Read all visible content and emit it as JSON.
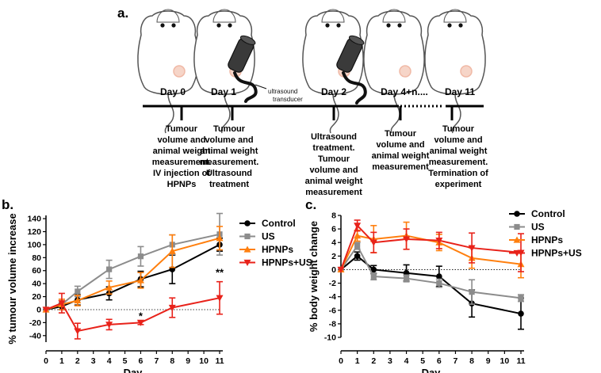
{
  "panel_a": {
    "label": "a.",
    "days": [
      "Day 0",
      "Day 1",
      "Day 2",
      "Day 4+n....",
      "Day 11"
    ],
    "transducer_label": [
      "ultrasound",
      "transducer"
    ],
    "descriptions": [
      [
        "Tumour",
        "volume and",
        "animal weight",
        "measurement.",
        "IV injection of",
        "HPNPs"
      ],
      [
        "Tumour",
        "volume and",
        "animal weight",
        "measurement.",
        "Ultrasound",
        "treatment"
      ],
      [
        "Ultrasound",
        "treatment.",
        "Tumour",
        "volume and",
        "animal weight",
        "measurement"
      ],
      [
        "Tumour",
        "volume and",
        "animal weight",
        "measurement"
      ],
      [
        "Tumour",
        "volume and",
        "animal weight",
        "measurement.",
        "Termination of",
        "experiment"
      ]
    ]
  },
  "colors": {
    "control": "#000000",
    "us": "#8c8c8c",
    "hpnps": "#ff7f0e",
    "hpnps_us": "#e8221a"
  },
  "chart_data": [
    {
      "type": "line",
      "panel_label": "b.",
      "xlabel": "Day",
      "ylabel": "% tumour volume increase",
      "xlim": [
        0,
        11
      ],
      "ylim": [
        -50,
        145
      ],
      "xticks": [
        0,
        1,
        2,
        3,
        4,
        5,
        6,
        7,
        8,
        9,
        10,
        11
      ],
      "yticks": [
        -40,
        -20,
        0,
        20,
        40,
        60,
        80,
        100,
        120,
        140
      ],
      "legend_position": "top-right",
      "annotations": [
        {
          "text": "*",
          "x": 6,
          "y": -15
        },
        {
          "text": "**",
          "x": 11,
          "y": 52
        }
      ],
      "series": [
        {
          "name": "Control",
          "color_key": "control",
          "marker": "circle",
          "x": [
            0,
            1,
            2,
            4,
            6,
            8,
            11
          ],
          "y": [
            0,
            5,
            15,
            25,
            47,
            62,
            100
          ],
          "err": [
            0,
            5,
            8,
            10,
            12,
            22,
            10
          ]
        },
        {
          "name": "US",
          "color_key": "us",
          "marker": "square",
          "x": [
            0,
            1,
            2,
            4,
            6,
            8,
            11
          ],
          "y": [
            0,
            8,
            28,
            62,
            82,
            100,
            116
          ],
          "err": [
            0,
            8,
            8,
            14,
            15,
            15,
            32
          ]
        },
        {
          "name": "HPNPs",
          "color_key": "hpnps",
          "marker": "triangle-up",
          "x": [
            0,
            1,
            2,
            4,
            6,
            8,
            11
          ],
          "y": [
            0,
            8,
            14,
            34,
            45,
            90,
            110
          ],
          "err": [
            0,
            8,
            8,
            10,
            12,
            25,
            18
          ]
        },
        {
          "name": "HPNPs+US",
          "color_key": "hpnps_us",
          "marker": "triangle-down",
          "x": [
            0,
            1,
            2,
            4,
            6,
            8,
            11
          ],
          "y": [
            0,
            10,
            -33,
            -23,
            -20,
            3,
            18
          ],
          "err": [
            0,
            15,
            12,
            8,
            3,
            15,
            25
          ]
        }
      ]
    },
    {
      "type": "line",
      "panel_label": "c.",
      "xlabel": "Day",
      "ylabel": "% body weight change",
      "xlim": [
        0,
        11
      ],
      "ylim": [
        -10,
        8
      ],
      "xticks": [
        0,
        1,
        2,
        3,
        4,
        5,
        6,
        7,
        8,
        9,
        10,
        11
      ],
      "yticks": [
        -10,
        -8,
        -6,
        -4,
        -2,
        0,
        2,
        4,
        6,
        8
      ],
      "legend_position": "top-right",
      "series": [
        {
          "name": "Control",
          "color_key": "control",
          "marker": "circle",
          "x": [
            0,
            1,
            2,
            4,
            6,
            8,
            11
          ],
          "y": [
            0,
            2,
            0,
            -0.5,
            -1,
            -5,
            -6.5
          ],
          "err": [
            0,
            0.6,
            0.6,
            1.2,
            1.5,
            2,
            2.3
          ]
        },
        {
          "name": "US",
          "color_key": "us",
          "marker": "square",
          "x": [
            0,
            1,
            2,
            4,
            6,
            8,
            11
          ],
          "y": [
            0,
            3.5,
            -1,
            -1.3,
            -2,
            -3.3,
            -4.2
          ],
          "err": [
            0,
            0.5,
            0.5,
            0.5,
            0.6,
            1.8,
            0.5
          ]
        },
        {
          "name": "HPNPs",
          "color_key": "hpnps",
          "marker": "triangle-up",
          "x": [
            0,
            1,
            2,
            4,
            6,
            8,
            11
          ],
          "y": [
            0,
            5,
            4.5,
            5,
            4,
            1.7,
            0.8
          ],
          "err": [
            0,
            0.8,
            2,
            2,
            1.2,
            1.5,
            2
          ]
        },
        {
          "name": "HPNPs+US",
          "color_key": "hpnps_us",
          "marker": "triangle-down",
          "x": [
            0,
            1,
            2,
            4,
            6,
            8,
            11
          ],
          "y": [
            0,
            6.5,
            4,
            4.5,
            4.3,
            3.2,
            2.5
          ],
          "err": [
            0,
            0.8,
            1.5,
            1.5,
            1.2,
            2.2,
            2.8
          ]
        }
      ]
    }
  ]
}
